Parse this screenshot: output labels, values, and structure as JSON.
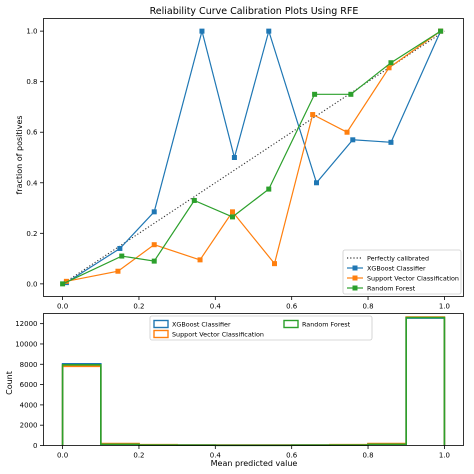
{
  "chart_data": [
    {
      "type": "line",
      "title": "Reliability Curve Calibration Plots Using RFE",
      "xlabel": "",
      "ylabel": "fraction of positives",
      "xlim": [
        -0.05,
        1.05
      ],
      "ylim": [
        -0.05,
        1.05
      ],
      "xticks": [
        "0.0",
        "0.2",
        "0.4",
        "0.6",
        "0.8",
        "1.0"
      ],
      "yticks": [
        "0.0",
        "0.2",
        "0.4",
        "0.6",
        "0.8",
        "1.0"
      ],
      "grid": false,
      "legend_position": "lower-right",
      "series": [
        {
          "name": "Perfectly calibrated",
          "color": "#333333",
          "style": "dotted",
          "marker": "none",
          "x": [
            0,
            1
          ],
          "y": [
            0,
            1
          ]
        },
        {
          "name": "XGBoost Classifier",
          "color": "#1f77b4",
          "style": "solid",
          "marker": "square",
          "x": [
            0.01,
            0.15,
            0.24,
            0.365,
            0.45,
            0.54,
            0.665,
            0.76,
            0.86,
            0.99
          ],
          "y": [
            0.005,
            0.14,
            0.285,
            1.0,
            0.5,
            1.0,
            0.4,
            0.57,
            0.56,
            1.0
          ]
        },
        {
          "name": "Support Vector Classification",
          "color": "#ff7f0e",
          "style": "solid",
          "marker": "square",
          "x": [
            0.01,
            0.145,
            0.24,
            0.36,
            0.445,
            0.555,
            0.655,
            0.745,
            0.855,
            0.99
          ],
          "y": [
            0.01,
            0.05,
            0.155,
            0.095,
            0.285,
            0.08,
            0.67,
            0.6,
            0.855,
            1.0
          ]
        },
        {
          "name": "Random Forest",
          "color": "#2ca02c",
          "style": "solid",
          "marker": "square",
          "x": [
            0.0,
            0.155,
            0.24,
            0.345,
            0.445,
            0.54,
            0.66,
            0.755,
            0.86,
            0.99
          ],
          "y": [
            0.0,
            0.11,
            0.09,
            0.33,
            0.265,
            0.375,
            0.75,
            0.75,
            0.875,
            1.0
          ]
        }
      ]
    },
    {
      "type": "histogram",
      "title": "",
      "xlabel": "Mean predicted value",
      "ylabel": "Count",
      "xlim": [
        -0.05,
        1.05
      ],
      "ylim": [
        0,
        13000
      ],
      "xticks": [
        "0.0",
        "0.2",
        "0.4",
        "0.6",
        "0.8",
        "1.0"
      ],
      "yticks": [
        "0",
        "2000",
        "4000",
        "6000",
        "8000",
        "10000",
        "12000"
      ],
      "bins": [
        0.0,
        0.1,
        0.2,
        0.3,
        0.4,
        0.5,
        0.6,
        0.7,
        0.8,
        0.9,
        1.0
      ],
      "legend_position": "upper-center",
      "series": [
        {
          "name": "XGBoost Classifier",
          "color": "#1f77b4",
          "counts": [
            8050,
            150,
            60,
            40,
            30,
            30,
            40,
            60,
            150,
            12550
          ]
        },
        {
          "name": "Support Vector Classification",
          "color": "#ff7f0e",
          "counts": [
            7800,
            200,
            80,
            50,
            40,
            40,
            50,
            80,
            200,
            12650
          ]
        },
        {
          "name": "Random Forest",
          "color": "#2ca02c",
          "counts": [
            7950,
            120,
            50,
            30,
            20,
            20,
            30,
            50,
            120,
            12600
          ]
        }
      ]
    }
  ]
}
